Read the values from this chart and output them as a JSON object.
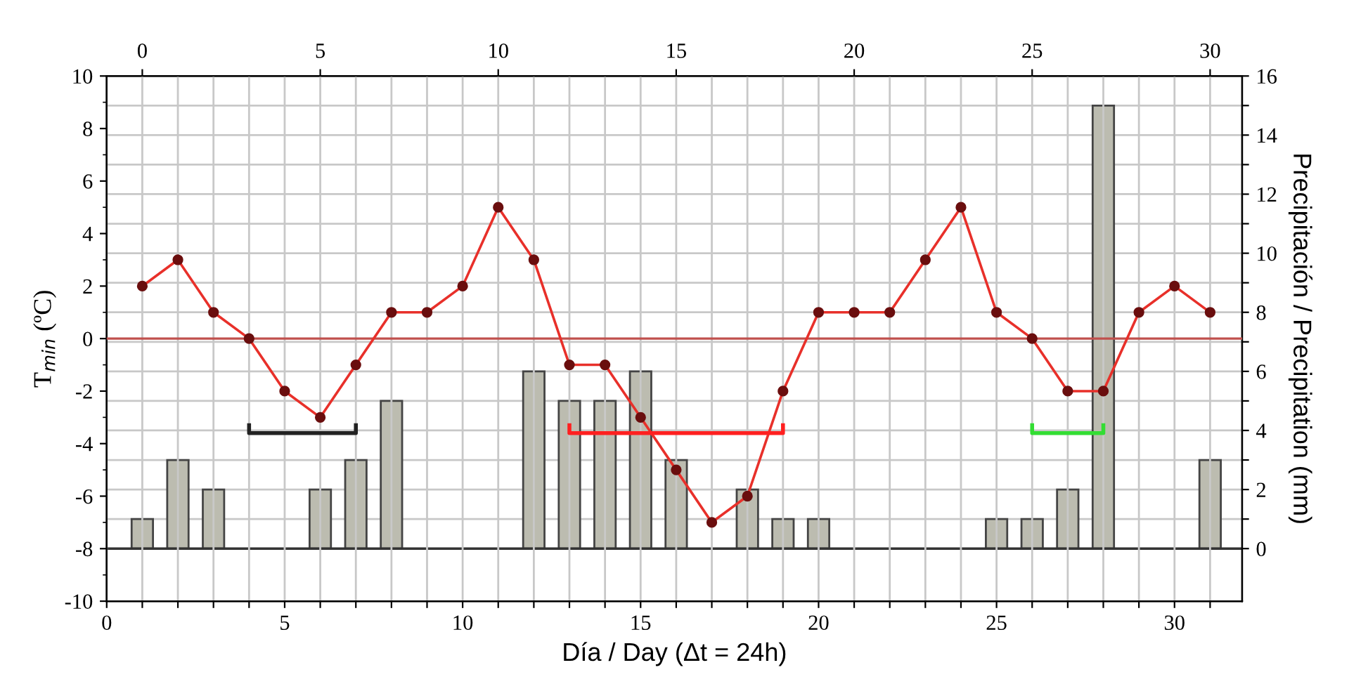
{
  "chart_data": {
    "type": "line",
    "xlabel": "Día / Day (Δt = 24h)",
    "ylabel": "T$_{min}$ (ºC)",
    "y2label": "Precipitación / Precipitation (mm)",
    "x": [
      1,
      2,
      3,
      4,
      5,
      6,
      7,
      8,
      9,
      10,
      11,
      12,
      13,
      14,
      15,
      16,
      17,
      18,
      19,
      20,
      21,
      22,
      23,
      24,
      25,
      26,
      27,
      28,
      29,
      30,
      31
    ],
    "series": [
      {
        "type": "bar",
        "axis": "y2",
        "color": "#bcbcb0",
        "values": [
          1,
          3,
          2,
          null,
          null,
          2,
          3,
          5,
          null,
          null,
          null,
          6,
          5,
          5,
          6,
          3,
          null,
          2,
          1,
          1,
          null,
          null,
          null,
          null,
          1,
          1,
          2,
          15,
          null,
          null,
          3
        ]
      },
      {
        "axis": "y",
        "color": "#e8302a",
        "marker": "circle",
        "values": [
          2,
          3,
          1,
          0,
          -2,
          -3,
          -1,
          1,
          1,
          2,
          5,
          3,
          -1,
          -1,
          -3,
          -5,
          -7,
          -6,
          -2,
          1,
          1,
          1,
          3,
          5,
          1,
          0,
          -2,
          -2,
          1,
          2,
          1
        ]
      },
      {
        "axis": "y",
        "color": "#222222",
        "marker": "none",
        "x": [
          4,
          4,
          7,
          7
        ],
        "values": [
          -3.3,
          -3.6,
          -3.6,
          -3.3
        ]
      },
      {
        "axis": "y",
        "color": "#ff2020",
        "marker": "none",
        "x": [
          13,
          13,
          19,
          19
        ],
        "values": [
          -3.3,
          -3.6,
          -3.6,
          -3.3
        ]
      },
      {
        "axis": "y",
        "color": "#33dd33",
        "marker": "none",
        "x": [
          26,
          26,
          28,
          28
        ],
        "values": [
          -3.3,
          -3.6,
          -3.6,
          -3.3
        ]
      }
    ],
    "xlim": [
      0,
      31.9
    ],
    "xticks": [
      0,
      {
        "value": 1,
        "label": null
      },
      {
        "value": 2,
        "label": null
      },
      {
        "value": 3,
        "label": null
      },
      {
        "value": 4,
        "label": null
      },
      5,
      {
        "value": 6,
        "label": null
      },
      {
        "value": 7,
        "label": null
      },
      {
        "value": 8,
        "label": null
      },
      {
        "value": 9,
        "label": null
      },
      10,
      {
        "value": 11,
        "label": null
      },
      {
        "value": 12,
        "label": null
      },
      {
        "value": 13,
        "label": null
      },
      {
        "value": 14,
        "label": null
      },
      15,
      {
        "value": 16,
        "label": null
      },
      {
        "value": 17,
        "label": null
      },
      {
        "value": 18,
        "label": null
      },
      {
        "value": 19,
        "label": null
      },
      20,
      {
        "value": 21,
        "label": null
      },
      {
        "value": 22,
        "label": null
      },
      {
        "value": 23,
        "label": null
      },
      {
        "value": 24,
        "label": null
      },
      25,
      {
        "value": 26,
        "label": null
      },
      {
        "value": 27,
        "label": null
      },
      {
        "value": 28,
        "label": null
      },
      {
        "value": 29,
        "label": null
      },
      30,
      {
        "value": 31,
        "label": null
      }
    ],
    "x2lim": [
      -1,
      30.9
    ],
    "x2ticks": [
      0,
      5,
      10,
      15,
      20,
      25,
      30
    ],
    "ylim": [
      -10,
      10
    ],
    "yticks": [
      -10,
      -8,
      -6,
      -4,
      -2,
      0,
      2,
      4,
      6,
      8,
      10
    ],
    "y2lim": [
      -1.78,
      16
    ],
    "y2ticks": [
      0,
      {
        "value": 1,
        "label": null
      },
      2,
      {
        "value": 3,
        "label": null
      },
      4,
      {
        "value": 5,
        "label": null
      },
      6,
      {
        "value": 7,
        "label": null
      },
      8,
      {
        "value": 9,
        "label": null
      },
      10,
      {
        "value": 11,
        "label": null
      },
      12,
      {
        "value": 13,
        "label": null
      },
      14,
      {
        "value": 15,
        "label": null
      },
      16
    ],
    "grid": true,
    "ref_lines": [
      {
        "axis": "y",
        "value": 0,
        "color": "#c0504d"
      },
      {
        "axis": "y2",
        "value": 0,
        "color": "#333333"
      }
    ]
  }
}
